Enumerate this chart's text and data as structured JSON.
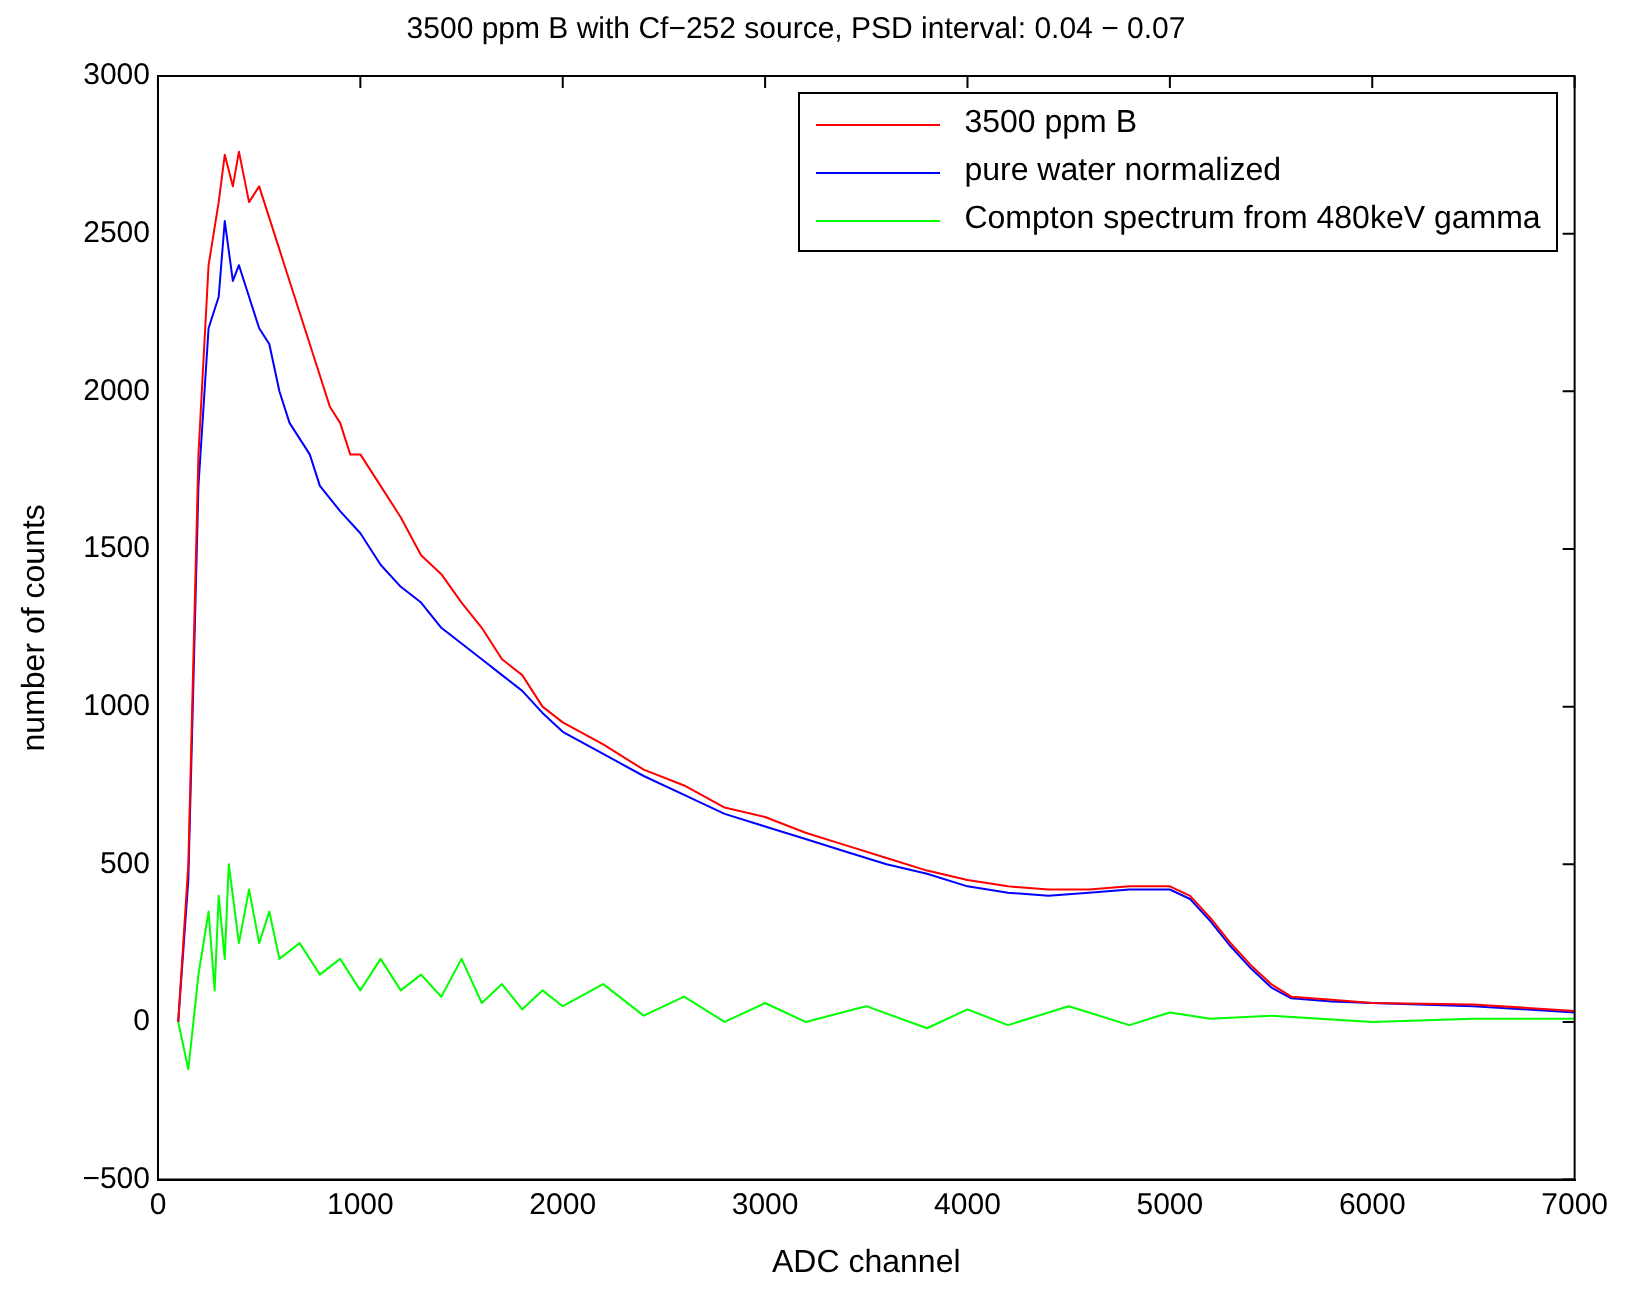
{
  "chart_data": {
    "type": "line",
    "title": "3500 ppm B with Cf−252 source, PSD interval: 0.04 − 0.07",
    "xlabel": "ADC channel",
    "ylabel": "number of counts",
    "xlim": [
      0,
      7000
    ],
    "xticks": [
      0,
      1000,
      2000,
      3000,
      4000,
      5000,
      6000,
      7000
    ],
    "ylim": [
      -500,
      3000
    ],
    "yticks": [
      -500,
      0,
      500,
      1000,
      1500,
      2000,
      2500,
      3000
    ],
    "grid": false,
    "legend": "top right",
    "marker": "none",
    "line_style": "solid",
    "series": [
      {
        "name": "3500 ppm B",
        "color": "#ff0000",
        "x": [
          100,
          150,
          200,
          250,
          300,
          330,
          370,
          400,
          450,
          500,
          550,
          600,
          650,
          700,
          750,
          800,
          850,
          900,
          950,
          1000,
          1100,
          1200,
          1300,
          1400,
          1500,
          1600,
          1700,
          1800,
          1900,
          2000,
          2200,
          2400,
          2600,
          2800,
          3000,
          3200,
          3400,
          3600,
          3800,
          4000,
          4200,
          4400,
          4600,
          4800,
          5000,
          5100,
          5200,
          5300,
          5400,
          5500,
          5600,
          5800,
          6000,
          6500,
          7000
        ],
        "values": [
          0,
          500,
          1800,
          2400,
          2600,
          2750,
          2650,
          2760,
          2600,
          2650,
          2550,
          2450,
          2350,
          2250,
          2150,
          2050,
          1950,
          1900,
          1800,
          1800,
          1700,
          1600,
          1480,
          1420,
          1330,
          1250,
          1150,
          1100,
          1000,
          950,
          880,
          800,
          750,
          680,
          650,
          600,
          560,
          520,
          480,
          450,
          430,
          420,
          420,
          430,
          430,
          400,
          330,
          250,
          180,
          120,
          80,
          70,
          60,
          55,
          35
        ]
      },
      {
        "name": "pure water normalized",
        "color": "#0000ff",
        "x": [
          100,
          150,
          200,
          250,
          300,
          330,
          370,
          400,
          450,
          500,
          550,
          600,
          650,
          700,
          750,
          800,
          900,
          1000,
          1100,
          1200,
          1300,
          1400,
          1500,
          1600,
          1700,
          1800,
          1900,
          2000,
          2200,
          2400,
          2600,
          2800,
          3000,
          3200,
          3400,
          3600,
          3800,
          4000,
          4200,
          4400,
          4600,
          4800,
          5000,
          5100,
          5200,
          5300,
          5400,
          5500,
          5600,
          5800,
          6000,
          6500,
          7000
        ],
        "values": [
          0,
          450,
          1700,
          2200,
          2300,
          2540,
          2350,
          2400,
          2300,
          2200,
          2150,
          2000,
          1900,
          1850,
          1800,
          1700,
          1620,
          1550,
          1450,
          1380,
          1330,
          1250,
          1200,
          1150,
          1100,
          1050,
          980,
          920,
          850,
          780,
          720,
          660,
          620,
          580,
          540,
          500,
          470,
          430,
          410,
          400,
          410,
          420,
          420,
          390,
          320,
          240,
          170,
          110,
          75,
          65,
          60,
          50,
          30
        ]
      },
      {
        "name": "Compton spectrum from 480keV gamma",
        "color": "#00ff00",
        "x": [
          100,
          150,
          200,
          250,
          280,
          300,
          330,
          350,
          400,
          450,
          500,
          550,
          600,
          700,
          800,
          900,
          1000,
          1100,
          1200,
          1300,
          1400,
          1500,
          1600,
          1700,
          1800,
          1900,
          2000,
          2200,
          2400,
          2600,
          2800,
          3000,
          3200,
          3500,
          3800,
          4000,
          4200,
          4500,
          4800,
          5000,
          5200,
          5500,
          6000,
          6500,
          7000
        ],
        "values": [
          0,
          -150,
          150,
          350,
          100,
          400,
          200,
          500,
          250,
          420,
          250,
          350,
          200,
          250,
          150,
          200,
          100,
          200,
          100,
          150,
          80,
          200,
          60,
          120,
          40,
          100,
          50,
          120,
          20,
          80,
          0,
          60,
          0,
          50,
          -20,
          40,
          -10,
          50,
          -10,
          30,
          10,
          20,
          0,
          10,
          10
        ]
      }
    ]
  }
}
